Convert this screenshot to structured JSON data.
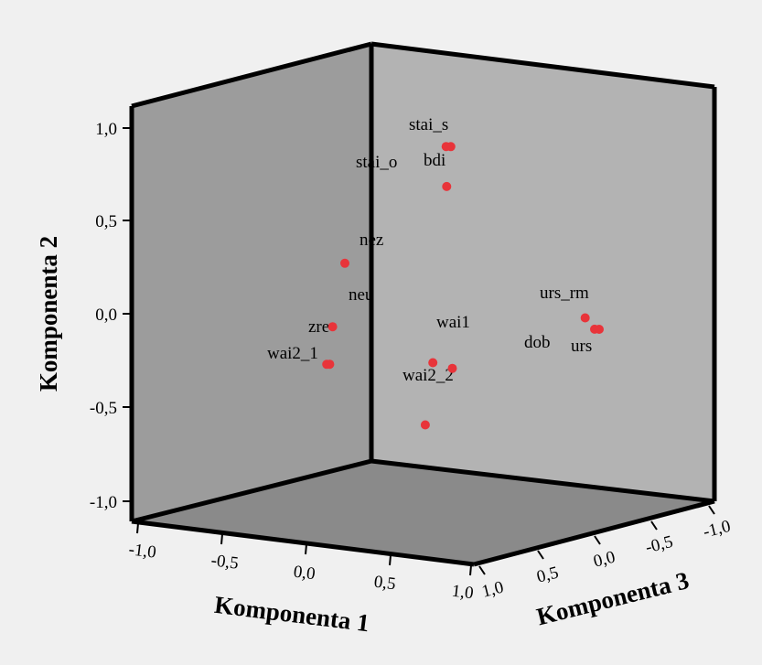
{
  "chart_data": {
    "type": "scatter3d",
    "colors": {
      "point": "#e8343a",
      "back_wall": "#b3b3b3",
      "left_wall": "#9c9c9c",
      "floor": "#8a8a8a",
      "frame": "#000000",
      "background": "#f0f0f0"
    },
    "axes": {
      "x": {
        "label": "Komponenta 1",
        "range": [
          -1,
          1
        ],
        "ticks": [
          "-1,0",
          "-0,5",
          "0,0",
          "0,5",
          "1,0"
        ]
      },
      "y": {
        "label": "Komponenta 2",
        "range": [
          -1,
          1
        ],
        "ticks": [
          "1,0",
          "0,5",
          "0,0",
          "-0,5",
          "-1,0"
        ]
      },
      "z": {
        "label": "Komponenta 3",
        "range": [
          -1,
          1
        ],
        "ticks": [
          "1,0",
          "0,5",
          "0,0",
          "-0,5",
          "-1,0"
        ]
      }
    },
    "points": [
      {
        "label": "stai_s",
        "x": 0.62,
        "y": 0.92,
        "z": 0.65
      },
      {
        "label": "stai_o",
        "x": 0.6,
        "y": 0.92,
        "z": 0.66
      },
      {
        "label": "bdi",
        "x": 0.61,
        "y": 0.73,
        "z": 0.67
      },
      {
        "label": "nez",
        "x": 0.05,
        "y": 0.31,
        "z": 0.72
      },
      {
        "label": "neu",
        "x": 0.02,
        "y": 0.01,
        "z": 0.78
      },
      {
        "label": "zre",
        "x": 0.0,
        "y": -0.17,
        "z": 0.8
      },
      {
        "label": "wai2_1",
        "x": 0.01,
        "y": -0.17,
        "z": 0.79
      },
      {
        "label": "wai1",
        "x": 0.55,
        "y": -0.12,
        "z": 0.7
      },
      {
        "label": "wai1",
        "x": 0.65,
        "y": -0.14,
        "z": 0.68
      },
      {
        "label": "wai2_2",
        "x": 0.52,
        "y": -0.42,
        "z": 0.72
      },
      {
        "label": "urs_rm",
        "x": 0.88,
        "y": 0.01,
        "z": -0.1
      },
      {
        "label": "dob",
        "x": 0.9,
        "y": -0.05,
        "z": -0.15
      },
      {
        "label": "urs",
        "x": 0.92,
        "y": -0.05,
        "z": -0.16
      }
    ],
    "point_labels": [
      {
        "text": "stai_s"
      },
      {
        "text": "stai_o"
      },
      {
        "text": "bdi"
      },
      {
        "text": "nez"
      },
      {
        "text": "neu"
      },
      {
        "text": "zre"
      },
      {
        "text": "wai2_1"
      },
      {
        "text": "wai1"
      },
      {
        "text": "wai2_2"
      },
      {
        "text": "urs_rm"
      },
      {
        "text": "dob"
      },
      {
        "text": "urs"
      }
    ]
  }
}
